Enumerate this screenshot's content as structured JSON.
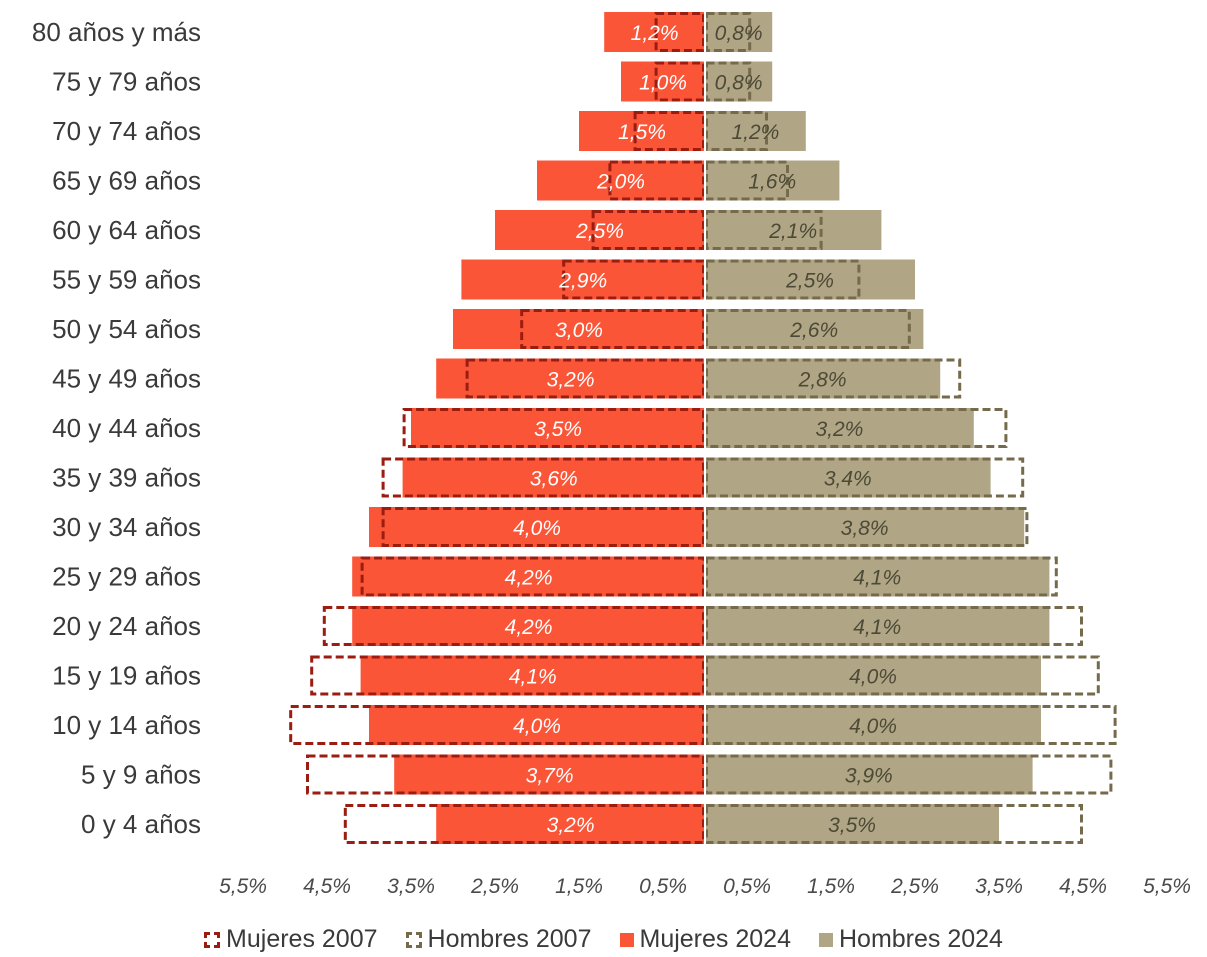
{
  "chart_data": {
    "type": "bar",
    "orientation": "horizontal-population-pyramid",
    "categories": [
      "80 años y más",
      "75 y 79 años",
      "70 y 74 años",
      "65 y 69 años",
      "60 y 64 años",
      "55 y 59 años",
      "50 y 54 años",
      "45 y 49 años",
      "40 y 44 años",
      "35 y 39 años",
      "30 y 34 años",
      "25 y 29 años",
      "20 y 24 años",
      "15 y 19 años",
      "10 y 14 años",
      "5 y 9 años",
      "0 y 4 años"
    ],
    "series": [
      {
        "name": "Mujeres 2007",
        "style": "dashed-outline",
        "side": "left",
        "color": "#9b1c10",
        "values": [
          0.6,
          0.6,
          0.85,
          1.15,
          1.35,
          1.7,
          2.2,
          2.85,
          3.6,
          3.85,
          3.85,
          4.1,
          4.55,
          4.7,
          4.95,
          4.75,
          4.3
        ]
      },
      {
        "name": "Hombres 2007",
        "style": "dashed-outline",
        "side": "right",
        "color": "#756a4b",
        "values": [
          0.55,
          0.55,
          0.75,
          1.0,
          1.4,
          1.85,
          2.45,
          3.05,
          3.6,
          3.8,
          3.85,
          4.2,
          4.5,
          4.7,
          4.9,
          4.85,
          4.5
        ]
      },
      {
        "name": "Mujeres 2024",
        "style": "solid",
        "side": "left",
        "color": "#fb5538",
        "values": [
          1.2,
          1.0,
          1.5,
          2.0,
          2.5,
          2.9,
          3.0,
          3.2,
          3.5,
          3.6,
          4.0,
          4.2,
          4.2,
          4.1,
          4.0,
          3.7,
          3.2
        ],
        "labels": [
          "1,2%",
          "1,0%",
          "1,5%",
          "2,0%",
          "2,5%",
          "2,9%",
          "3,0%",
          "3,2%",
          "3,5%",
          "3,6%",
          "4,0%",
          "4,2%",
          "4,2%",
          "4,1%",
          "4,0%",
          "3,7%",
          "3,2%"
        ]
      },
      {
        "name": "Hombres 2024",
        "style": "solid",
        "side": "right",
        "color": "#b0a685",
        "values": [
          0.8,
          0.8,
          1.2,
          1.6,
          2.1,
          2.5,
          2.6,
          2.8,
          3.2,
          3.4,
          3.8,
          4.1,
          4.1,
          4.0,
          4.0,
          3.9,
          3.5
        ],
        "labels": [
          "0,8%",
          "0,8%",
          "1,2%",
          "1,6%",
          "2,1%",
          "2,5%",
          "2,6%",
          "2,8%",
          "3,2%",
          "3,4%",
          "3,8%",
          "4,1%",
          "4,1%",
          "4,0%",
          "4,0%",
          "3,9%",
          "3,5%"
        ]
      }
    ],
    "x_ticks": [
      "5,5%",
      "4,5%",
      "3,5%",
      "2,5%",
      "1,5%",
      "0,5%",
      "0,5%",
      "1,5%",
      "2,5%",
      "3,5%",
      "4,5%",
      "5,5%"
    ],
    "x_tick_values": [
      -5.5,
      -4.5,
      -3.5,
      -2.5,
      -1.5,
      -0.5,
      0.5,
      1.5,
      2.5,
      3.5,
      4.5,
      5.5
    ],
    "xlim": [
      -5.5,
      5.5
    ],
    "grid": false,
    "legend_position": "bottom"
  },
  "legend": {
    "items": [
      {
        "label": "Mujeres 2007",
        "kind": "dashed",
        "color": "#9b1c10"
      },
      {
        "label": "Hombres 2007",
        "kind": "dashed",
        "color": "#756a4b"
      },
      {
        "label": "Mujeres 2024",
        "kind": "solid",
        "color": "#fb5538"
      },
      {
        "label": "Hombres 2024",
        "kind": "solid",
        "color": "#b0a685"
      }
    ]
  }
}
